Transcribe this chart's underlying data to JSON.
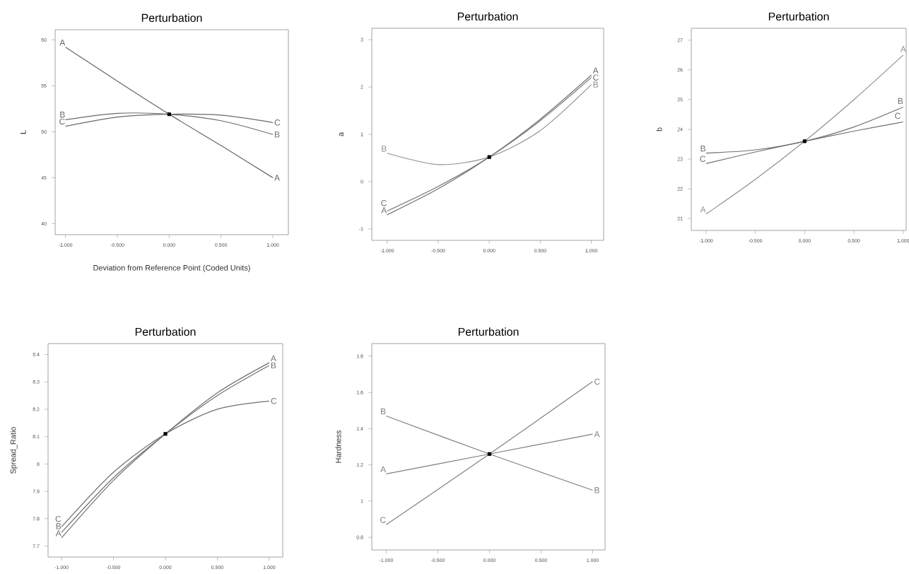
{
  "chart_data": [
    {
      "type": "line",
      "title": "Perturbation",
      "xlabel": "Deviation from Reference Point (Coded Units)",
      "ylabel": "L",
      "x": [
        -1,
        -0.5,
        0,
        0.5,
        1
      ],
      "xlim": [
        -1.1,
        1.15
      ],
      "ylim": [
        38.8,
        61.1
      ],
      "xticks": [
        {
          "value": -1,
          "label": "-1.000"
        },
        {
          "value": -0.5,
          "label": "-0.500"
        },
        {
          "value": 0,
          "label": "0.000"
        },
        {
          "value": 0.5,
          "label": "0.500"
        },
        {
          "value": 1,
          "label": "1.000"
        }
      ],
      "yticks": [
        40,
        45,
        50,
        55,
        60
      ],
      "series": [
        {
          "name": "A",
          "color": "#666666",
          "values": [
            59.2,
            55.5,
            51.9,
            48.5,
            45.0
          ]
        },
        {
          "name": "B",
          "color": "#6a6a6a",
          "values": [
            51.3,
            52.0,
            51.9,
            51.2,
            49.7
          ]
        },
        {
          "name": "C",
          "color": "#6a6a6a",
          "values": [
            50.6,
            51.6,
            51.9,
            51.8,
            51.0
          ]
        },
        {
          "type": "scatter",
          "marker": "square",
          "color": "#000000",
          "values": [
            null,
            null,
            51.9,
            null,
            null
          ]
        }
      ]
    },
    {
      "type": "line",
      "title": "Perturbation",
      "ylabel": "a",
      "x": [
        -1,
        -0.5,
        0,
        0.5,
        1
      ],
      "xlim": [
        -1.15,
        1.12
      ],
      "ylim": [
        -1.24,
        3.24
      ],
      "xticks": [
        {
          "value": -1,
          "label": "-1.000"
        },
        {
          "value": -0.5,
          "label": "-0.500"
        },
        {
          "value": 0,
          "label": "0.000"
        },
        {
          "value": 0.5,
          "label": "0.500"
        },
        {
          "value": 1,
          "label": "1.000"
        }
      ],
      "yticks": [
        -1,
        0,
        1,
        2,
        3
      ],
      "series": [
        {
          "name": "A",
          "color": "#707070",
          "values": [
            -0.7,
            -0.15,
            0.52,
            1.32,
            2.25
          ]
        },
        {
          "name": "B",
          "color": "#909090",
          "values": [
            0.6,
            0.36,
            0.52,
            1.08,
            2.05
          ]
        },
        {
          "name": "C",
          "color": "#707070",
          "values": [
            -0.62,
            -0.1,
            0.52,
            1.29,
            2.2
          ]
        },
        {
          "type": "scatter",
          "marker": "square",
          "color": "#000000",
          "values": [
            null,
            null,
            0.52,
            null,
            null
          ]
        }
      ]
    },
    {
      "type": "line",
      "title": "Perturbation",
      "ylabel": "b",
      "x": [
        -1,
        -0.5,
        0,
        0.5,
        1
      ],
      "xlim": [
        -1.15,
        1.03
      ],
      "ylim": [
        20.6,
        27.4
      ],
      "xticks": [
        {
          "value": -1,
          "label": "-1.000"
        },
        {
          "value": -0.5,
          "label": "-0.500"
        },
        {
          "value": 0,
          "label": "0.000"
        },
        {
          "value": 0.5,
          "label": "0.500"
        },
        {
          "value": 1,
          "label": "1.000"
        }
      ],
      "yticks": [
        21,
        22,
        23,
        24,
        25,
        26,
        27
      ],
      "series": [
        {
          "name": "A",
          "color": "#909090",
          "values": [
            21.15,
            22.32,
            23.6,
            25.0,
            26.5
          ]
        },
        {
          "name": "B",
          "color": "#707070",
          "values": [
            23.2,
            23.31,
            23.6,
            24.08,
            24.75
          ]
        },
        {
          "name": "C",
          "color": "#707070",
          "values": [
            22.85,
            23.24,
            23.6,
            23.94,
            24.25
          ]
        },
        {
          "type": "scatter",
          "marker": "square",
          "color": "#000000",
          "values": [
            null,
            null,
            23.6,
            null,
            null
          ]
        }
      ]
    },
    {
      "type": "line",
      "title": "Perturbation",
      "ylabel": "Spread_Ratio",
      "x": [
        -1,
        -0.5,
        0,
        0.5,
        1
      ],
      "xlim": [
        -1.13,
        1.13
      ],
      "ylim": [
        7.66,
        8.44
      ],
      "xticks": [
        {
          "value": -1,
          "label": "-1.000"
        },
        {
          "value": -0.5,
          "label": "-0.500"
        },
        {
          "value": 0,
          "label": "0.000"
        },
        {
          "value": 0.5,
          "label": "0.500"
        },
        {
          "value": 1,
          "label": "1.000"
        }
      ],
      "yticks": [
        7.7,
        7.8,
        7.9,
        8,
        8.1,
        8.2,
        8.3,
        8.4
      ],
      "series": [
        {
          "name": "A",
          "color": "#707070",
          "values": [
            7.73,
            7.94,
            8.11,
            8.26,
            8.37
          ]
        },
        {
          "name": "B",
          "color": "#707070",
          "values": [
            7.75,
            7.95,
            8.11,
            8.25,
            8.36
          ]
        },
        {
          "name": "C",
          "color": "#707070",
          "values": [
            7.77,
            7.97,
            8.11,
            8.2,
            8.23
          ]
        },
        {
          "type": "scatter",
          "marker": "square",
          "color": "#000000",
          "values": [
            null,
            null,
            8.11,
            null,
            null
          ]
        }
      ]
    },
    {
      "type": "line",
      "title": "Perturbation",
      "ylabel": "Hardness",
      "x": [
        -1,
        0,
        1
      ],
      "xlim": [
        -1.14,
        1.12
      ],
      "ylim": [
        0.73,
        1.87
      ],
      "xticks": [
        {
          "value": -1,
          "label": "-1.000"
        },
        {
          "value": -0.5,
          "label": "-0.500"
        },
        {
          "value": 0,
          "label": "0.000"
        },
        {
          "value": 0.5,
          "label": "0.500"
        },
        {
          "value": 1,
          "label": "1.000"
        }
      ],
      "yticks": [
        0.8,
        1,
        1.2,
        1.4,
        1.6,
        1.8
      ],
      "series": [
        {
          "name": "A",
          "color": "#808080",
          "values": [
            1.15,
            1.26,
            1.37
          ]
        },
        {
          "name": "B",
          "color": "#808080",
          "values": [
            1.47,
            1.26,
            1.06
          ]
        },
        {
          "name": "C",
          "color": "#808080",
          "values": [
            0.87,
            1.26,
            1.66
          ]
        },
        {
          "type": "scatter",
          "marker": "square",
          "color": "#000000",
          "values": [
            null,
            1.26,
            null
          ]
        }
      ]
    }
  ]
}
